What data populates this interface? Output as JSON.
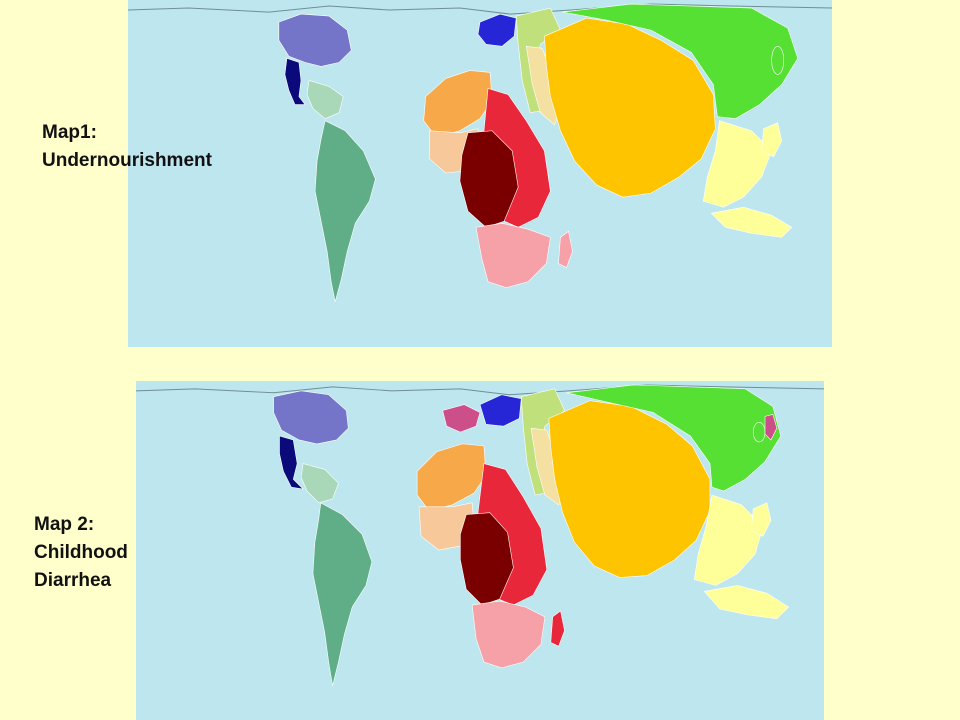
{
  "maps": [
    {
      "label_lines": [
        "Map1:",
        "Undernourishment"
      ],
      "colors": {
        "ocean": "#bde6ee",
        "north_america": "#7474c8",
        "central_america": "#0a0a7a",
        "south_america": "#5fae88",
        "south_america_light": "#a8d8b8",
        "europe": "#2626d6",
        "russia_central_asia": "#bfe07a",
        "middle_east": "#f4e0a0",
        "south_asia": "#ffc400",
        "east_asia": "#55e033",
        "southeast_asia": "#ffff99",
        "north_africa": "#f7a94a",
        "west_africa": "#f7c89a",
        "central_africa": "#7a0000",
        "east_africa": "#e8273a",
        "southern_africa": "#f6a0a8"
      }
    },
    {
      "label_lines": [
        "Map 2:",
        "Childhood",
        "Diarrhea"
      ],
      "colors": {
        "ocean": "#bde6ee",
        "north_america": "#7474c8",
        "central_america": "#0a0a7a",
        "south_america": "#5fae88",
        "south_america_light": "#a8d8b8",
        "europe": "#2626d6",
        "western_europe": "#cc4f8a",
        "russia_central_asia": "#bfe07a",
        "middle_east": "#f4e0a0",
        "south_asia": "#ffc400",
        "east_asia": "#55e033",
        "southeast_asia": "#ffff99",
        "north_africa": "#f7a94a",
        "west_africa": "#f7c89a",
        "central_africa": "#7a0000",
        "east_africa": "#e8273a",
        "southern_africa": "#f6a0a8"
      }
    }
  ]
}
